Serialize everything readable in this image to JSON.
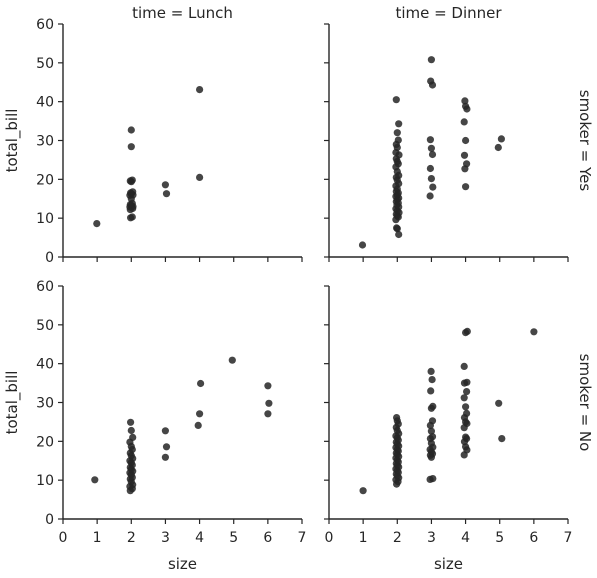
{
  "chart_data": {
    "type": "scatter",
    "x_label": "size",
    "y_label": "total_bill",
    "xlim": [
      0,
      7
    ],
    "ylim": [
      0,
      60
    ],
    "x_ticks": [
      "0",
      "1",
      "2",
      "3",
      "4",
      "5",
      "6",
      "7"
    ],
    "y_ticks": [
      "0",
      "10",
      "20",
      "30",
      "40",
      "50",
      "60"
    ],
    "grid": false,
    "marker_color": "#262626",
    "panels": [
      {
        "id": "lunch-yes",
        "col_title": "time = Lunch",
        "row_label": "",
        "points": [
          [
            0.99,
            8.6
          ],
          [
            1.98,
            10.1
          ],
          [
            2.03,
            10.3
          ],
          [
            1.97,
            12.2
          ],
          [
            2.04,
            12.5
          ],
          [
            1.96,
            12.9
          ],
          [
            2.05,
            13.0
          ],
          [
            2.0,
            13.3
          ],
          [
            1.97,
            13.5
          ],
          [
            2.03,
            13.8
          ],
          [
            2.0,
            15.0
          ],
          [
            1.96,
            15.9
          ],
          [
            2.05,
            16.0
          ],
          [
            2.0,
            16.3
          ],
          [
            1.98,
            16.5
          ],
          [
            2.04,
            16.8
          ],
          [
            2.0,
            19.4
          ],
          [
            1.97,
            19.6
          ],
          [
            2.03,
            19.8
          ],
          [
            2.0,
            28.4
          ],
          [
            2.0,
            32.7
          ],
          [
            3.03,
            16.3
          ],
          [
            3.0,
            18.6
          ],
          [
            4.0,
            20.5
          ],
          [
            4.0,
            43.1
          ]
        ]
      },
      {
        "id": "dinner-yes",
        "col_title": "time = Dinner",
        "row_label": "smoker = Yes",
        "points": [
          [
            0.98,
            3.1
          ],
          [
            2.04,
            5.8
          ],
          [
            2.0,
            7.3
          ],
          [
            1.98,
            7.5
          ],
          [
            1.96,
            9.6
          ],
          [
            2.03,
            10.3
          ],
          [
            2.0,
            10.6
          ],
          [
            1.97,
            11.0
          ],
          [
            2.05,
            11.4
          ],
          [
            2.0,
            11.9
          ],
          [
            1.96,
            12.4
          ],
          [
            2.04,
            12.9
          ],
          [
            1.99,
            13.4
          ],
          [
            2.03,
            13.9
          ],
          [
            1.97,
            14.3
          ],
          [
            2.0,
            14.8
          ],
          [
            2.04,
            15.2
          ],
          [
            1.96,
            15.6
          ],
          [
            2.0,
            16.0
          ],
          [
            2.03,
            16.5
          ],
          [
            1.97,
            16.9
          ],
          [
            2.0,
            17.5
          ],
          [
            1.96,
            18.3
          ],
          [
            2.04,
            18.9
          ],
          [
            2.0,
            19.8
          ],
          [
            1.97,
            20.5
          ],
          [
            2.04,
            21.0
          ],
          [
            2.0,
            22.0
          ],
          [
            1.96,
            23.2
          ],
          [
            2.03,
            24.0
          ],
          [
            2.0,
            24.6
          ],
          [
            1.97,
            25.3
          ],
          [
            2.05,
            26.3
          ],
          [
            1.96,
            26.9
          ],
          [
            2.0,
            28.2
          ],
          [
            1.97,
            29.0
          ],
          [
            2.03,
            30.1
          ],
          [
            2.0,
            32.0
          ],
          [
            2.04,
            34.3
          ],
          [
            1.97,
            40.5
          ],
          [
            2.96,
            15.7
          ],
          [
            3.04,
            18.0
          ],
          [
            3.0,
            20.2
          ],
          [
            2.97,
            22.8
          ],
          [
            3.03,
            26.4
          ],
          [
            3.0,
            28.0
          ],
          [
            2.97,
            30.2
          ],
          [
            3.03,
            44.3
          ],
          [
            2.98,
            45.3
          ],
          [
            3.0,
            50.8
          ],
          [
            4.0,
            18.1
          ],
          [
            3.98,
            22.7
          ],
          [
            4.03,
            24.0
          ],
          [
            3.97,
            26.2
          ],
          [
            4.0,
            30.0
          ],
          [
            3.96,
            34.8
          ],
          [
            4.04,
            38.1
          ],
          [
            4.0,
            38.8
          ],
          [
            3.98,
            40.2
          ],
          [
            4.96,
            28.2
          ],
          [
            5.05,
            30.4
          ]
        ]
      },
      {
        "id": "lunch-no",
        "col_title": "",
        "row_label": "",
        "points": [
          [
            0.93,
            10.1
          ],
          [
            1.97,
            7.3
          ],
          [
            2.03,
            7.8
          ],
          [
            1.96,
            8.4
          ],
          [
            2.04,
            8.8
          ],
          [
            2.0,
            9.6
          ],
          [
            1.97,
            10.3
          ],
          [
            2.03,
            10.7
          ],
          [
            2.0,
            11.4
          ],
          [
            1.96,
            11.9
          ],
          [
            2.04,
            12.3
          ],
          [
            2.0,
            12.8
          ],
          [
            1.97,
            13.3
          ],
          [
            2.03,
            13.9
          ],
          [
            2.0,
            14.5
          ],
          [
            1.96,
            15.0
          ],
          [
            2.04,
            15.6
          ],
          [
            2.0,
            16.3
          ],
          [
            1.97,
            17.0
          ],
          [
            2.03,
            17.9
          ],
          [
            2.0,
            18.7
          ],
          [
            1.96,
            19.8
          ],
          [
            2.04,
            21.0
          ],
          [
            2.0,
            22.8
          ],
          [
            1.98,
            24.9
          ],
          [
            3.0,
            15.9
          ],
          [
            3.03,
            18.6
          ],
          [
            3.0,
            22.7
          ],
          [
            3.96,
            24.1
          ],
          [
            4.0,
            27.1
          ],
          [
            4.03,
            34.9
          ],
          [
            4.96,
            40.9
          ],
          [
            6.0,
            27.1
          ],
          [
            6.03,
            29.8
          ],
          [
            6.0,
            34.3
          ]
        ]
      },
      {
        "id": "dinner-no",
        "col_title": "",
        "row_label": "smoker = No",
        "points": [
          [
            1.0,
            7.3
          ],
          [
            1.98,
            9.0
          ],
          [
            2.02,
            9.6
          ],
          [
            1.96,
            10.1
          ],
          [
            2.04,
            10.6
          ],
          [
            2.0,
            11.1
          ],
          [
            1.97,
            11.6
          ],
          [
            2.03,
            12.0
          ],
          [
            2.0,
            12.5
          ],
          [
            1.96,
            12.9
          ],
          [
            2.04,
            13.4
          ],
          [
            2.0,
            13.8
          ],
          [
            1.97,
            14.3
          ],
          [
            2.03,
            14.7
          ],
          [
            2.0,
            15.2
          ],
          [
            1.96,
            15.7
          ],
          [
            2.04,
            16.1
          ],
          [
            2.0,
            16.6
          ],
          [
            1.97,
            17.0
          ],
          [
            2.03,
            17.5
          ],
          [
            2.0,
            17.9
          ],
          [
            1.96,
            18.4
          ],
          [
            2.04,
            18.8
          ],
          [
            2.0,
            19.3
          ],
          [
            1.97,
            19.8
          ],
          [
            2.03,
            20.3
          ],
          [
            2.0,
            20.9
          ],
          [
            1.96,
            21.4
          ],
          [
            2.04,
            22.0
          ],
          [
            2.0,
            22.8
          ],
          [
            1.97,
            23.6
          ],
          [
            2.03,
            24.5
          ],
          [
            2.0,
            25.3
          ],
          [
            1.98,
            26.1
          ],
          [
            2.96,
            10.2
          ],
          [
            3.04,
            10.4
          ],
          [
            3.0,
            15.9
          ],
          [
            2.97,
            16.4
          ],
          [
            3.03,
            16.8
          ],
          [
            3.0,
            17.3
          ],
          [
            2.96,
            17.9
          ],
          [
            3.04,
            18.5
          ],
          [
            3.0,
            19.5
          ],
          [
            2.97,
            20.7
          ],
          [
            3.03,
            21.2
          ],
          [
            3.0,
            22.6
          ],
          [
            2.97,
            24.1
          ],
          [
            3.03,
            25.3
          ],
          [
            3.0,
            28.5
          ],
          [
            3.04,
            29.0
          ],
          [
            2.98,
            33.0
          ],
          [
            3.02,
            35.9
          ],
          [
            2.99,
            38.0
          ],
          [
            3.96,
            16.5
          ],
          [
            4.04,
            17.8
          ],
          [
            4.0,
            18.6
          ],
          [
            3.97,
            19.9
          ],
          [
            4.03,
            20.7
          ],
          [
            4.0,
            21.1
          ],
          [
            3.96,
            23.5
          ],
          [
            4.04,
            24.6
          ],
          [
            4.0,
            25.0
          ],
          [
            3.97,
            26.1
          ],
          [
            4.03,
            27.2
          ],
          [
            4.0,
            28.9
          ],
          [
            3.96,
            31.2
          ],
          [
            4.03,
            32.8
          ],
          [
            3.97,
            35.0
          ],
          [
            4.04,
            35.2
          ],
          [
            3.96,
            39.3
          ],
          [
            4.0,
            48.0
          ],
          [
            4.05,
            48.3
          ],
          [
            4.97,
            29.8
          ],
          [
            5.06,
            20.7
          ],
          [
            6.0,
            48.2
          ]
        ]
      }
    ]
  }
}
